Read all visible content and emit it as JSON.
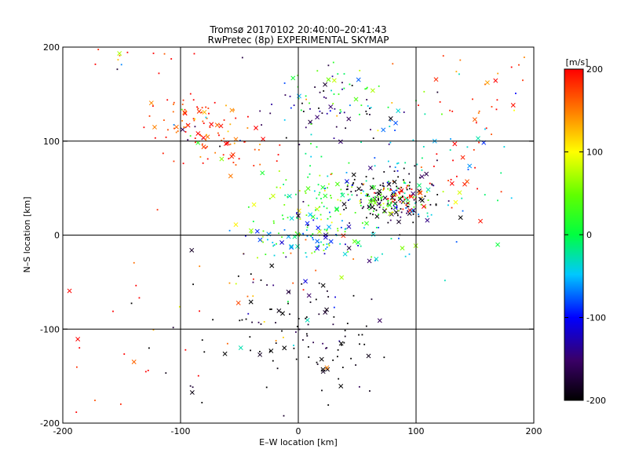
{
  "chart_data": {
    "type": "scatter",
    "title": "Tromsø 20170102 20:40:00–20:41:43",
    "subtitle": "RwPretec (8p) EXPERIMENTAL SKYMAP",
    "xlabel": "E–W location [km]",
    "ylabel": "N–S location [km]",
    "xlim": [
      -200,
      200
    ],
    "ylim": [
      -200,
      200
    ],
    "xticks": [
      -200,
      -100,
      0,
      100,
      200
    ],
    "yticks": [
      -200,
      -100,
      0,
      100,
      200
    ],
    "grid": true,
    "colorbar": {
      "label": "[m/s]",
      "range": [
        -200,
        200
      ],
      "ticks": [
        200,
        100,
        0,
        -100,
        -200
      ],
      "colormap": "black-purple-blue-cyan-green-yellow-red"
    },
    "clusters": [
      {
        "cx": -90,
        "cy": 120,
        "sx": 18,
        "sy": 15,
        "n": 80,
        "v": 190
      },
      {
        "cx": -60,
        "cy": 90,
        "sx": 25,
        "sy": 12,
        "n": 40,
        "v": 180
      },
      {
        "cx": -150,
        "cy": 190,
        "sx": 20,
        "sy": 8,
        "n": 15,
        "v": 200
      },
      {
        "cx": 20,
        "cy": 140,
        "sx": 25,
        "sy": 20,
        "n": 60,
        "v": -150
      },
      {
        "cx": 40,
        "cy": 150,
        "sx": 25,
        "sy": 20,
        "n": 30,
        "v": 30
      },
      {
        "cx": 75,
        "cy": 40,
        "sx": 20,
        "sy": 15,
        "n": 160,
        "v": -190
      },
      {
        "cx": 80,
        "cy": 35,
        "sx": 12,
        "sy": 8,
        "n": 50,
        "v": 50
      },
      {
        "cx": 88,
        "cy": 40,
        "sx": 8,
        "sy": 6,
        "n": 35,
        "v": 200
      },
      {
        "cx": 20,
        "cy": 25,
        "sx": 30,
        "sy": 25,
        "n": 120,
        "v": 40
      },
      {
        "cx": 10,
        "cy": 0,
        "sx": 25,
        "sy": 12,
        "n": 70,
        "v": -60
      },
      {
        "cx": 0,
        "cy": -95,
        "sx": 30,
        "sy": 25,
        "n": 80,
        "v": -200
      },
      {
        "cx": 130,
        "cy": 60,
        "sx": 20,
        "sy": 15,
        "n": 25,
        "v": 190
      },
      {
        "cx": 150,
        "cy": 160,
        "sx": 30,
        "sy": 30,
        "n": 40,
        "v": 180
      },
      {
        "cx": -60,
        "cy": -100,
        "sx": 40,
        "sy": 40,
        "n": 25,
        "v": -200
      },
      {
        "cx": -150,
        "cy": -110,
        "sx": 40,
        "sy": 60,
        "n": 25,
        "v": 200
      },
      {
        "cx": 30,
        "cy": -140,
        "sx": 20,
        "sy": 30,
        "n": 25,
        "v": -200
      },
      {
        "cx": 80,
        "cy": 70,
        "sx": 60,
        "sy": 60,
        "n": 100,
        "v": -40
      },
      {
        "cx": -50,
        "cy": -60,
        "sx": 30,
        "sy": 30,
        "n": 15,
        "v": 150
      }
    ]
  }
}
